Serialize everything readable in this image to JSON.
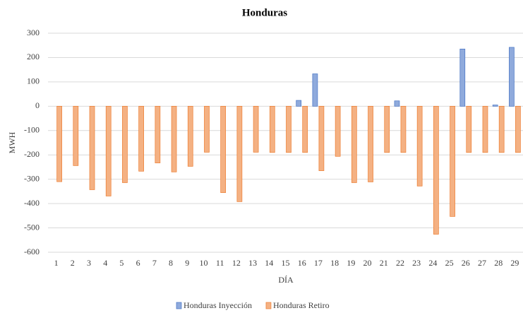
{
  "chart_data": {
    "type": "bar",
    "title": "Honduras",
    "x_label": "DÍA",
    "y_label": "MWH",
    "categories": [
      "1",
      "2",
      "3",
      "4",
      "5",
      "6",
      "7",
      "8",
      "9",
      "10",
      "11",
      "12",
      "13",
      "14",
      "15",
      "16",
      "17",
      "18",
      "19",
      "20",
      "21",
      "22",
      "23",
      "24",
      "25",
      "26",
      "27",
      "28",
      "29"
    ],
    "series": [
      {
        "name": "Honduras Inyección",
        "color": "#8faadc",
        "values": [
          0,
          0,
          0,
          0,
          0,
          0,
          0,
          0,
          0,
          0,
          0,
          0,
          0,
          0,
          0,
          24,
          133,
          0,
          0,
          0,
          0,
          22,
          0,
          0,
          0,
          235,
          0,
          5,
          242
        ]
      },
      {
        "name": "Honduras Retiro",
        "color": "#f4b183",
        "values": [
          -310,
          -244,
          -343,
          -369,
          -314,
          -267,
          -233,
          -270,
          -247,
          -189,
          -355,
          -392,
          -189,
          -190,
          -190,
          -190,
          -265,
          -206,
          -314,
          -311,
          -190,
          -190,
          -328,
          -526,
          -453,
          -190,
          -190,
          -190,
          -190
        ]
      }
    ],
    "ylim": [
      -600,
      300
    ],
    "yticks": [
      -600,
      -500,
      -400,
      -300,
      -200,
      -100,
      0,
      100,
      200,
      300
    ],
    "grid": true,
    "legend": "bottom"
  }
}
